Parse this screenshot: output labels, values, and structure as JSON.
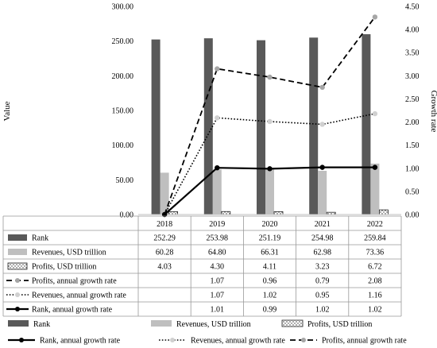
{
  "chart_data": {
    "type": "bar",
    "categories": [
      "2018",
      "2019",
      "2020",
      "2021",
      "2022"
    ],
    "left_axis": {
      "label": "Value",
      "ylim": [
        0,
        300
      ],
      "ticks": [
        "0.00",
        "50.00",
        "100.00",
        "150.00",
        "200.00",
        "250.00",
        "300.00"
      ]
    },
    "right_axis": {
      "label": "Growth rate",
      "ylim": [
        0,
        4.5
      ],
      "ticks": [
        "0.00",
        "0.50",
        "1.00",
        "1.50",
        "2.00",
        "2.50",
        "3.00",
        "3.50",
        "4.00",
        "4.50"
      ]
    },
    "bar_series": [
      {
        "name": "Rank",
        "color": "#595959",
        "values": [
          252.29,
          253.98,
          251.19,
          254.98,
          259.84
        ],
        "labels": [
          "252.29",
          "253.98",
          "251.19",
          "254.98",
          "259.84"
        ]
      },
      {
        "name": "Revenues, USD trillion",
        "color": "#bfbfbf",
        "values": [
          60.28,
          64.8,
          66.31,
          62.98,
          73.36
        ],
        "labels": [
          "60.28",
          "64.80",
          "66.31",
          "62.98",
          "73.36"
        ]
      },
      {
        "name": "Profits, USD trillion",
        "pattern": "dotted-hatch",
        "values": [
          4.03,
          4.3,
          4.11,
          3.23,
          6.72
        ],
        "labels": [
          "4.03",
          "4.30",
          "4.11",
          "3.23",
          "6.72"
        ]
      }
    ],
    "line_series": [
      {
        "name": "Profits, annual growth rate",
        "style": "dashed",
        "marker": "circle-gray",
        "values": [
          0,
          3.15,
          2.97,
          2.75,
          4.27
        ],
        "labels": [
          "",
          "1.07",
          "0.96",
          "0.79",
          "2.08"
        ]
      },
      {
        "name": "Revenues, annual growth rate",
        "style": "dotted",
        "marker": "circle-light",
        "values": [
          0,
          2.09,
          2.01,
          1.95,
          2.18
        ],
        "labels": [
          "",
          "1.07",
          "1.02",
          "0.95",
          "1.16"
        ]
      },
      {
        "name": "Rank, annual growth rate",
        "style": "solid",
        "marker": "circle-black",
        "values": [
          0,
          1.01,
          0.99,
          1.02,
          1.02
        ],
        "labels": [
          "",
          "1.01",
          "0.99",
          "1.02",
          "1.02"
        ]
      }
    ],
    "legend": {
      "row1": [
        "Rank",
        "Revenues, USD trillion",
        "Profits, USD trillion"
      ],
      "row2": [
        "Rank, annual growth rate",
        "Revenues, annual growth rate",
        "Profits, annual growth rate"
      ],
      "placement": "bottom"
    },
    "grid": false
  }
}
